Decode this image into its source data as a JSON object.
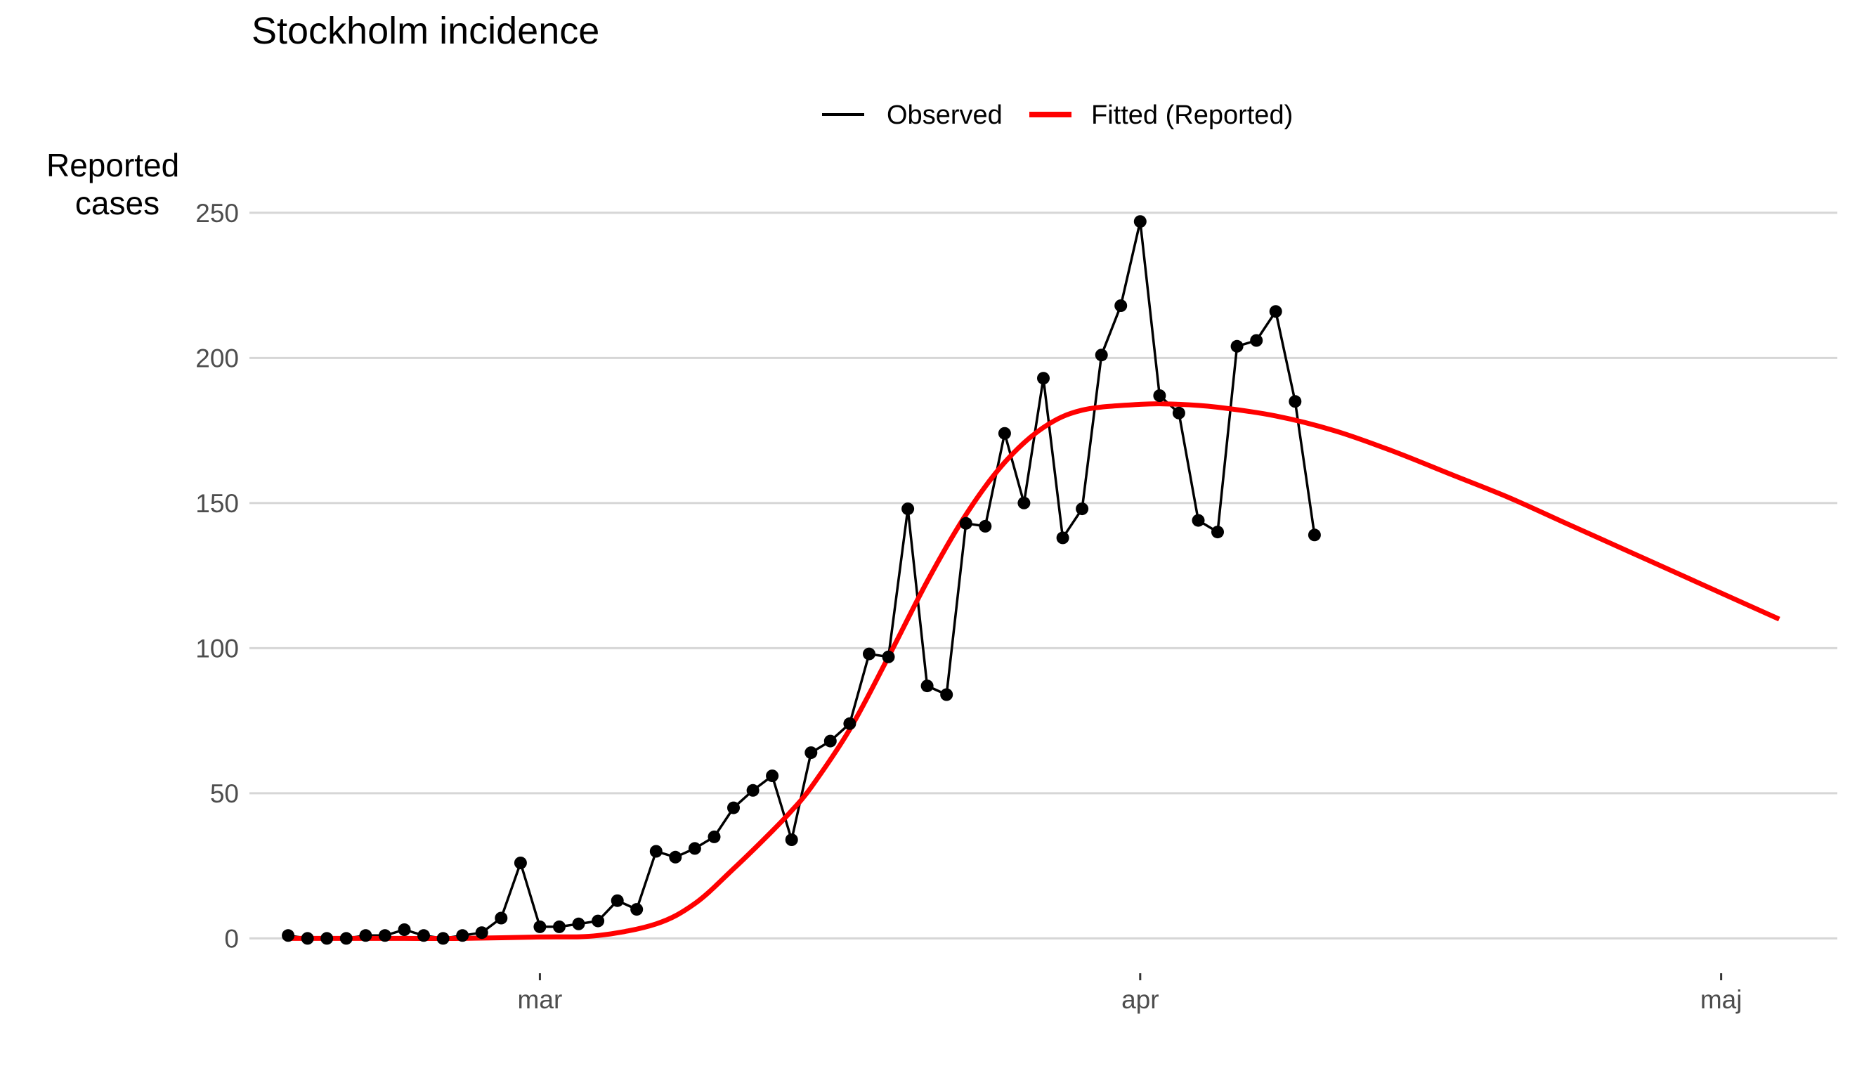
{
  "chart_data": {
    "type": "line",
    "title": "Stockholm incidence",
    "xlabel": "",
    "ylabel": "Reported cases",
    "ylabel_lines": [
      "Reported",
      "cases"
    ],
    "ylim": [
      -12,
      256
    ],
    "y_ticks": [
      0,
      50,
      100,
      150,
      200,
      250
    ],
    "x_range": [
      "2020-02-15",
      "2020-05-07"
    ],
    "x_ticks": [
      {
        "date": "2020-03-01",
        "label": "mar"
      },
      {
        "date": "2020-04-01",
        "label": "apr"
      },
      {
        "date": "2020-05-01",
        "label": "maj"
      }
    ],
    "grid": true,
    "legend_position": "top",
    "legend": [
      {
        "name": "Observed",
        "color": "#000000"
      },
      {
        "name": "Fitted (Reported)",
        "color": "#ff0000"
      }
    ],
    "series": [
      {
        "name": "Observed",
        "color": "#000000",
        "markers": true,
        "x": [
          "2020-02-17",
          "2020-02-18",
          "2020-02-19",
          "2020-02-20",
          "2020-02-21",
          "2020-02-22",
          "2020-02-23",
          "2020-02-24",
          "2020-02-25",
          "2020-02-26",
          "2020-02-27",
          "2020-02-28",
          "2020-02-29",
          "2020-03-01",
          "2020-03-02",
          "2020-03-03",
          "2020-03-04",
          "2020-03-05",
          "2020-03-06",
          "2020-03-07",
          "2020-03-08",
          "2020-03-09",
          "2020-03-10",
          "2020-03-11",
          "2020-03-12",
          "2020-03-13",
          "2020-03-14",
          "2020-03-15",
          "2020-03-16",
          "2020-03-17",
          "2020-03-18",
          "2020-03-19",
          "2020-03-20",
          "2020-03-21",
          "2020-03-22",
          "2020-03-23",
          "2020-03-24",
          "2020-03-25",
          "2020-03-26",
          "2020-03-27",
          "2020-03-28",
          "2020-03-29",
          "2020-03-30",
          "2020-03-31",
          "2020-04-01",
          "2020-04-02",
          "2020-04-03",
          "2020-04-04",
          "2020-04-05",
          "2020-04-06",
          "2020-04-07",
          "2020-04-08",
          "2020-04-09",
          "2020-04-10"
        ],
        "values": [
          1,
          0,
          0,
          0,
          1,
          1,
          3,
          1,
          0,
          1,
          2,
          7,
          26,
          4,
          4,
          5,
          6,
          13,
          10,
          30,
          28,
          31,
          35,
          45,
          51,
          56,
          34,
          64,
          68,
          74,
          98,
          97,
          148,
          87,
          84,
          143,
          142,
          174,
          150,
          193,
          138,
          148,
          201,
          218,
          247,
          187,
          181,
          144,
          140,
          204,
          206,
          216,
          185,
          139
        ]
      },
      {
        "name": "Fitted (Reported)",
        "color": "#ff0000",
        "markers": false,
        "x": [
          "2020-02-17",
          "2020-02-20",
          "2020-02-23",
          "2020-02-26",
          "2020-03-01",
          "2020-03-04",
          "2020-03-07",
          "2020-03-09",
          "2020-03-11",
          "2020-03-13",
          "2020-03-14",
          "2020-03-15",
          "2020-03-17",
          "2020-03-19",
          "2020-03-21",
          "2020-03-23",
          "2020-03-25",
          "2020-03-27",
          "2020-03-29",
          "2020-04-01",
          "2020-04-03",
          "2020-04-05",
          "2020-04-08",
          "2020-04-11",
          "2020-04-14",
          "2020-04-17",
          "2020-04-20",
          "2020-04-23",
          "2020-04-26",
          "2020-04-29",
          "2020-05-01",
          "2020-05-04"
        ],
        "values": [
          0,
          0,
          0,
          0,
          0.5,
          1,
          5,
          12,
          24,
          37,
          44,
          52,
          72,
          97,
          123,
          146,
          164,
          176,
          182,
          184,
          184,
          183,
          180,
          175,
          168,
          160,
          152,
          143,
          134,
          125,
          119,
          110
        ]
      }
    ]
  }
}
